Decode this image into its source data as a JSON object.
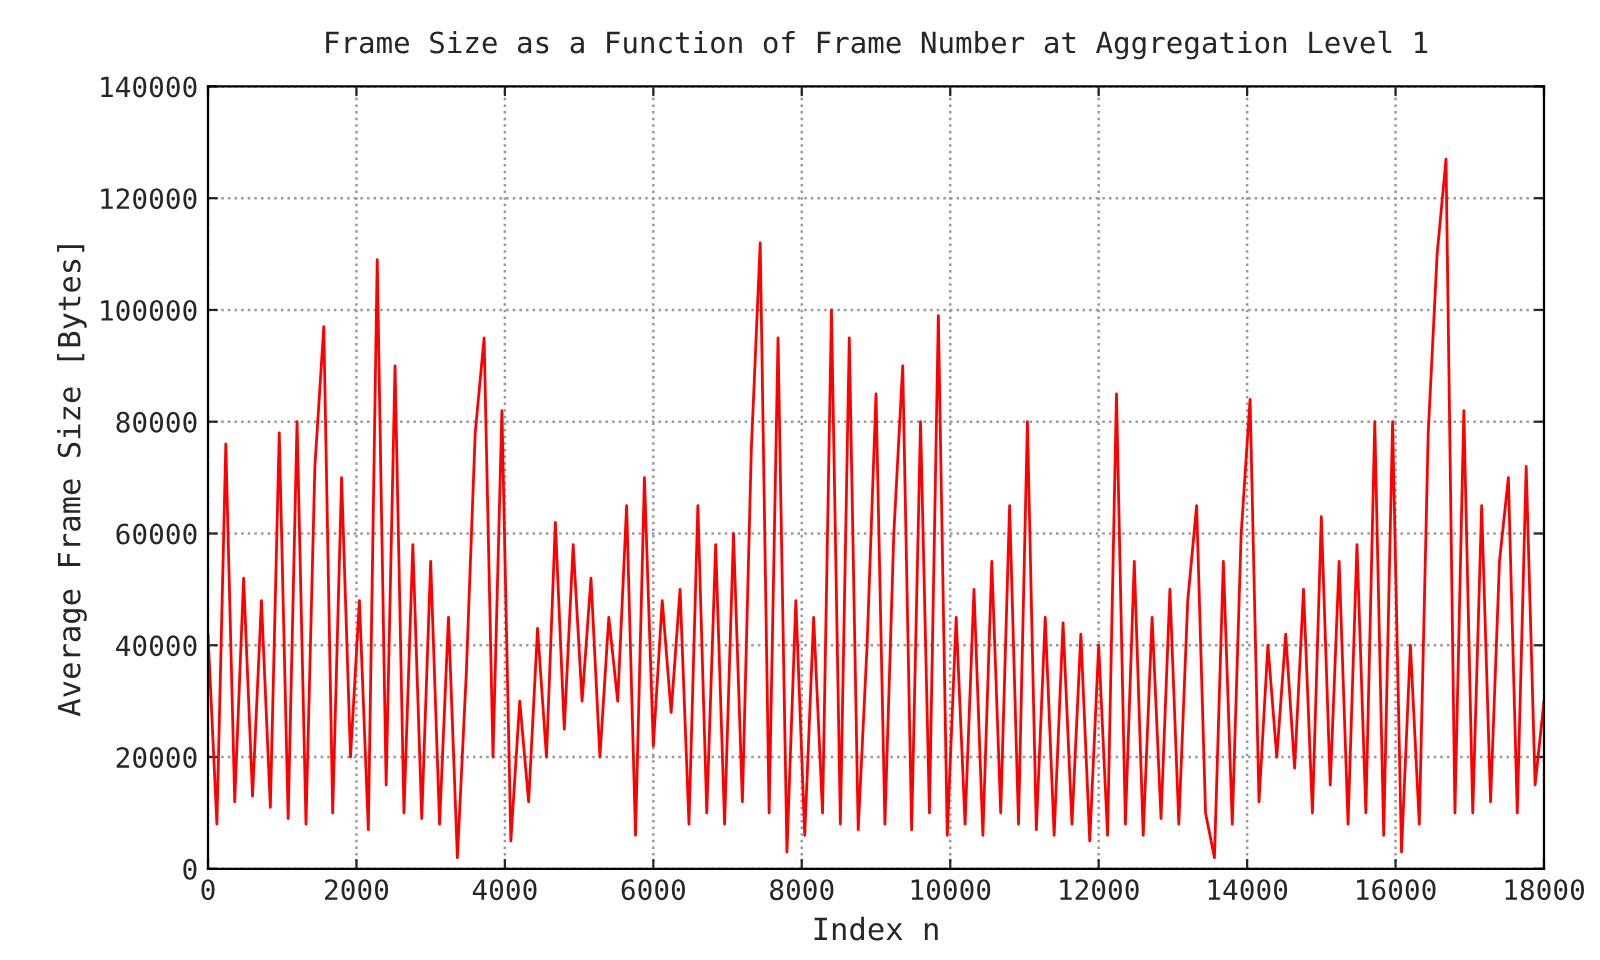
{
  "chart_data": {
    "type": "line",
    "title": "Frame Size as a Function of Frame Number at Aggregation Level 1",
    "xlabel": "Index n",
    "ylabel": "Average Frame Size [Bytes]",
    "xlim": [
      0,
      18000
    ],
    "xticks": [
      0,
      2000,
      4000,
      6000,
      8000,
      10000,
      12000,
      14000,
      16000,
      18000
    ],
    "ylim": [
      0,
      140000
    ],
    "yticks": [
      0,
      20000,
      40000,
      60000,
      80000,
      100000,
      120000,
      140000
    ],
    "grid": true,
    "legend": false,
    "marker": "none",
    "line_style": "solid",
    "series": [
      {
        "color": "#ff0000",
        "x": [
          0,
          120,
          240,
          360,
          480,
          600,
          720,
          840,
          960,
          1080,
          1200,
          1320,
          1440,
          1560,
          1680,
          1800,
          1920,
          2040,
          2160,
          2280,
          2400,
          2520,
          2640,
          2760,
          2880,
          3000,
          3120,
          3240,
          3360,
          3480,
          3600,
          3720,
          3840,
          3960,
          4080,
          4200,
          4320,
          4440,
          4560,
          4680,
          4800,
          4920,
          5040,
          5160,
          5280,
          5400,
          5520,
          5640,
          5760,
          5880,
          6000,
          6120,
          6240,
          6360,
          6480,
          6600,
          6720,
          6840,
          6960,
          7080,
          7200,
          7320,
          7440,
          7560,
          7680,
          7800,
          7920,
          8040,
          8160,
          8280,
          8400,
          8520,
          8640,
          8760,
          8880,
          9000,
          9120,
          9240,
          9360,
          9480,
          9600,
          9720,
          9840,
          9960,
          10080,
          10200,
          10320,
          10440,
          10560,
          10680,
          10800,
          10920,
          11040,
          11160,
          11280,
          11400,
          11520,
          11640,
          11760,
          11880,
          12000,
          12120,
          12240,
          12360,
          12480,
          12600,
          12720,
          12840,
          12960,
          13080,
          13200,
          13320,
          13440,
          13560,
          13680,
          13800,
          13920,
          14040,
          14160,
          14280,
          14400,
          14520,
          14640,
          14760,
          14880,
          15000,
          15120,
          15240,
          15360,
          15480,
          15600,
          15720,
          15840,
          15960,
          16080,
          16200,
          16320,
          16440,
          16560,
          16680,
          16800,
          16920,
          17040,
          17160,
          17280,
          17400,
          17520,
          17640,
          17760,
          17880,
          18000
        ],
        "values": [
          42000,
          8000,
          76000,
          12000,
          52000,
          13000,
          48000,
          11000,
          78000,
          9000,
          80000,
          8000,
          72000,
          97000,
          10000,
          70000,
          20000,
          48000,
          7000,
          109000,
          15000,
          90000,
          10000,
          58000,
          9000,
          55000,
          8000,
          45000,
          2000,
          35000,
          78000,
          95000,
          20000,
          82000,
          5000,
          30000,
          12000,
          43000,
          20000,
          62000,
          25000,
          58000,
          30000,
          52000,
          20000,
          45000,
          30000,
          65000,
          6000,
          70000,
          22000,
          48000,
          28000,
          50000,
          8000,
          65000,
          10000,
          58000,
          8000,
          60000,
          12000,
          75000,
          112000,
          10000,
          95000,
          3000,
          48000,
          6000,
          45000,
          10000,
          100000,
          8000,
          95000,
          7000,
          40000,
          85000,
          8000,
          60000,
          90000,
          7000,
          80000,
          10000,
          99000,
          6000,
          45000,
          8000,
          50000,
          6000,
          55000,
          10000,
          65000,
          8000,
          80000,
          7000,
          45000,
          6000,
          44000,
          8000,
          42000,
          5000,
          40000,
          6000,
          85000,
          8000,
          55000,
          6000,
          45000,
          9000,
          50000,
          8000,
          48000,
          65000,
          10000,
          2000,
          55000,
          8000,
          60000,
          84000,
          12000,
          40000,
          20000,
          42000,
          18000,
          50000,
          10000,
          63000,
          15000,
          55000,
          8000,
          58000,
          10000,
          80000,
          6000,
          80000,
          3000,
          40000,
          8000,
          78000,
          110000,
          127000,
          10000,
          82000,
          10000,
          65000,
          12000,
          55000,
          70000,
          10000,
          72000,
          15000,
          30000
        ]
      }
    ]
  }
}
